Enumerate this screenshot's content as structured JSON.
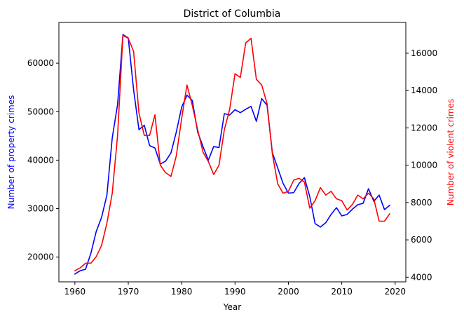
{
  "chart_data": {
    "type": "line",
    "title": "District of Columbia",
    "xlabel": "Year",
    "xlim": [
      1957,
      2022
    ],
    "x_ticks": [
      1960,
      1970,
      1980,
      1990,
      2000,
      2010,
      2020
    ],
    "grid": false,
    "legend": "none",
    "left_axis": {
      "label": "Number of property crimes",
      "color": "#0000ff",
      "ylim": [
        14900,
        68400
      ],
      "ticks": [
        20000,
        30000,
        40000,
        50000,
        60000
      ]
    },
    "right_axis": {
      "label": "Number of violent crimes",
      "color": "#ff0000",
      "ylim": [
        3750,
        17650
      ],
      "ticks": [
        4000,
        6000,
        8000,
        10000,
        12000,
        14000,
        16000
      ]
    },
    "x": [
      1960,
      1961,
      1962,
      1963,
      1964,
      1965,
      1966,
      1967,
      1968,
      1969,
      1970,
      1971,
      1972,
      1973,
      1974,
      1975,
      1976,
      1977,
      1978,
      1979,
      1980,
      1981,
      1982,
      1983,
      1984,
      1985,
      1986,
      1987,
      1988,
      1989,
      1990,
      1991,
      1992,
      1993,
      1994,
      1995,
      1996,
      1997,
      1998,
      1999,
      2000,
      2001,
      2002,
      2003,
      2004,
      2005,
      2006,
      2007,
      2008,
      2009,
      2010,
      2011,
      2012,
      2013,
      2014,
      2015,
      2016,
      2017,
      2018,
      2019
    ],
    "series": [
      {
        "name": "Number of property crimes",
        "axis": "left",
        "color": "#0000ff",
        "values": [
          16500,
          17200,
          17500,
          20800,
          25300,
          28200,
          32800,
          44600,
          51500,
          65900,
          65200,
          54500,
          46300,
          47200,
          43000,
          42500,
          39200,
          39800,
          41500,
          45800,
          50900,
          53400,
          52300,
          45800,
          42800,
          40000,
          42800,
          42600,
          49600,
          49300,
          50400,
          49800,
          50500,
          51100,
          48000,
          52700,
          51300,
          41500,
          38400,
          35200,
          33200,
          33300,
          35200,
          36400,
          32500,
          26900,
          26200,
          27100,
          28800,
          30200,
          28500,
          28800,
          29900,
          30800,
          31100,
          34100,
          31500,
          32800,
          29800,
          30700
        ]
      },
      {
        "name": "Number of violent crimes",
        "axis": "right",
        "color": "#ff0000",
        "values": [
          4350,
          4500,
          4750,
          4750,
          5100,
          5700,
          6900,
          8500,
          11600,
          16950,
          16800,
          16100,
          12800,
          11600,
          11600,
          12700,
          10000,
          9600,
          9400,
          10500,
          12500,
          14300,
          13200,
          11900,
          10700,
          10200,
          9500,
          10000,
          11900,
          13000,
          14900,
          14700,
          16550,
          16800,
          14600,
          14300,
          13300,
          10600,
          9000,
          8500,
          8600,
          9200,
          9300,
          9100,
          7700,
          8100,
          8800,
          8400,
          8600,
          8200,
          8100,
          7600,
          7900,
          8400,
          8200,
          8500,
          8200,
          7000,
          7000,
          7400
        ]
      }
    ]
  }
}
